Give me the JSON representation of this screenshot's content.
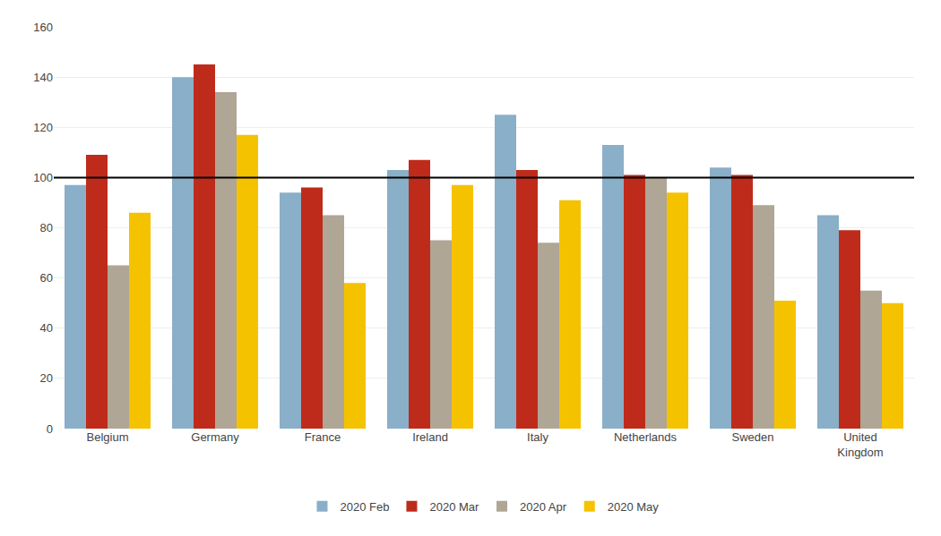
{
  "chart_data": {
    "type": "bar",
    "categories": [
      "Belgium",
      "Germany",
      "France",
      "Ireland",
      "Italy",
      "Netherlands",
      "Sweden",
      "United\nKingdom"
    ],
    "series": [
      {
        "name": "2020 Feb",
        "color": "#8aafc8",
        "values": [
          97,
          140,
          94,
          103,
          125,
          113,
          104,
          85
        ]
      },
      {
        "name": "2020 Mar",
        "color": "#bf2b1a",
        "values": [
          109,
          145,
          96,
          107,
          103,
          101,
          101,
          79
        ]
      },
      {
        "name": "2020 Apr",
        "color": "#b0a696",
        "values": [
          65,
          134,
          85,
          75,
          74,
          100,
          89,
          55
        ]
      },
      {
        "name": "2020 May",
        "color": "#f5c200",
        "values": [
          86,
          117,
          58,
          97,
          91,
          94,
          51,
          50
        ]
      }
    ],
    "ylim": [
      0,
      160
    ],
    "yticks": [
      0,
      20,
      40,
      60,
      80,
      100,
      120,
      140,
      160
    ],
    "hline": 100,
    "grid": true,
    "legend": "bottom"
  }
}
